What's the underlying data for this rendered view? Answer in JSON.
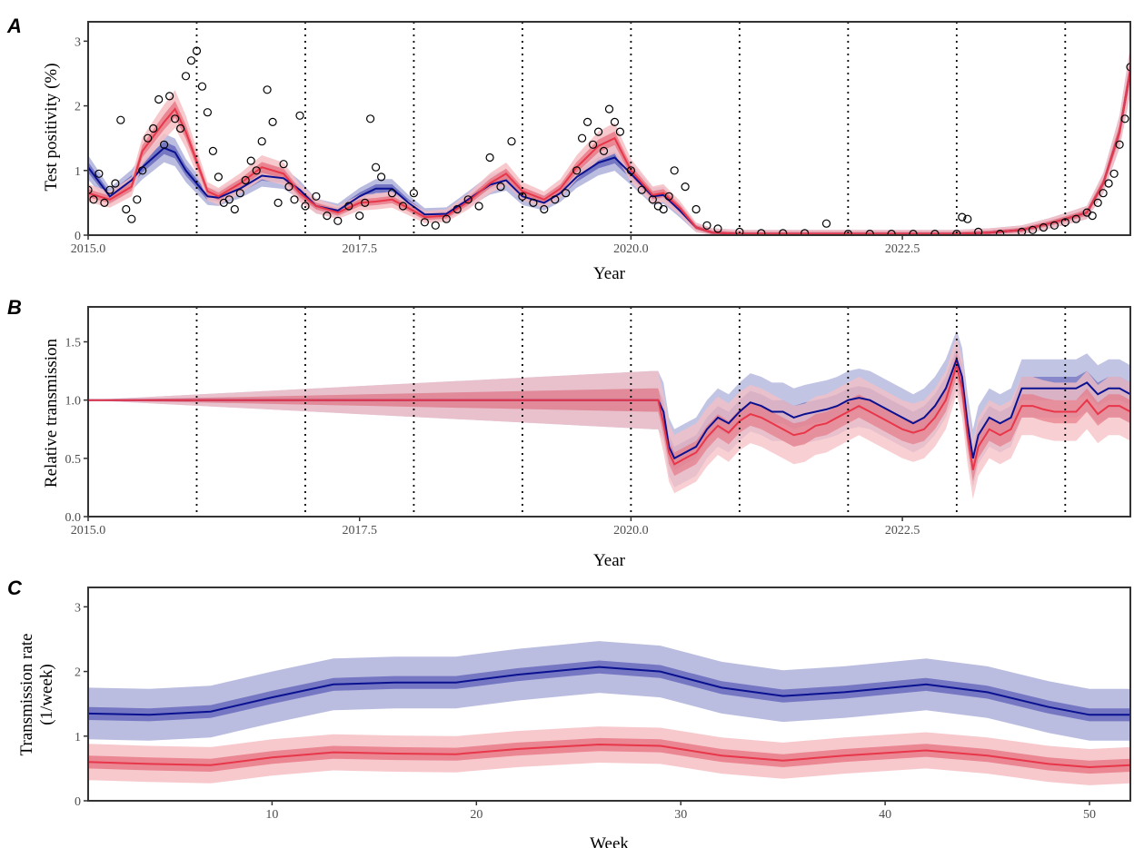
{
  "colors": {
    "blue_line": "#0a1190",
    "blue_band_outer": "#aeb0db",
    "blue_band_inner": "#5e60b8",
    "red_line": "#e8364a",
    "red_band_outer": "#f6c0c4",
    "red_band_inner": "#e6707d",
    "points": "#000000",
    "frame": "#333333"
  },
  "chart_data": [
    {
      "panel": "A",
      "type": "line",
      "xlabel": "Year",
      "ylabel": "Test positivity (%)",
      "xlim": [
        2015.0,
        2024.6
      ],
      "ylim": [
        0,
        3.3
      ],
      "xticks": [
        2015.0,
        2017.5,
        2020.0,
        2022.5
      ],
      "xtick_labels": [
        "2015.0",
        "2017.5",
        "2020.0",
        "2022.5"
      ],
      "yticks": [
        0,
        1,
        2,
        3
      ],
      "vlines": [
        2016,
        2017,
        2018,
        2019,
        2020,
        2021,
        2022,
        2023,
        2024
      ],
      "series": [
        {
          "color": "blue",
          "x": [
            2015.0,
            2015.2,
            2015.4,
            2015.5,
            2015.7,
            2015.8,
            2015.9,
            2016.1,
            2016.2,
            2016.4,
            2016.6,
            2016.8,
            2016.95,
            2017.1,
            2017.3,
            2017.5,
            2017.65,
            2017.8,
            2017.95,
            2018.1,
            2018.3,
            2018.5,
            2018.7,
            2018.85,
            2019.0,
            2019.2,
            2019.35,
            2019.5,
            2019.7,
            2019.85,
            2020.0,
            2020.2,
            2020.3,
            2020.45,
            2020.6,
            2020.75,
            2021.0,
            2021.5,
            2022.0,
            2022.5,
            2023.0,
            2023.3,
            2023.6,
            2023.85,
            2024.0,
            2024.2,
            2024.35,
            2024.5,
            2024.6
          ],
          "values": [
            1.05,
            0.6,
            0.85,
            1.05,
            1.35,
            1.28,
            1.0,
            0.6,
            0.58,
            0.72,
            0.92,
            0.88,
            0.7,
            0.45,
            0.38,
            0.6,
            0.72,
            0.72,
            0.5,
            0.32,
            0.33,
            0.55,
            0.78,
            0.85,
            0.6,
            0.5,
            0.65,
            0.9,
            1.12,
            1.2,
            0.95,
            0.6,
            0.62,
            0.38,
            0.12,
            0.04,
            0.02,
            0.02,
            0.02,
            0.02,
            0.02,
            0.04,
            0.08,
            0.18,
            0.25,
            0.35,
            0.8,
            1.6,
            2.55
          ]
        },
        {
          "color": "red",
          "x": [
            2015.0,
            2015.2,
            2015.4,
            2015.5,
            2015.7,
            2015.8,
            2015.9,
            2016.1,
            2016.2,
            2016.4,
            2016.6,
            2016.8,
            2016.95,
            2017.1,
            2017.3,
            2017.5,
            2017.65,
            2017.8,
            2017.95,
            2018.1,
            2018.3,
            2018.5,
            2018.7,
            2018.85,
            2019.0,
            2019.2,
            2019.35,
            2019.5,
            2019.7,
            2019.85,
            2020.0,
            2020.2,
            2020.3,
            2020.45,
            2020.6,
            2020.75,
            2021.0,
            2021.5,
            2022.0,
            2022.5,
            2023.0,
            2023.3,
            2023.6,
            2023.85,
            2024.0,
            2024.2,
            2024.35,
            2024.5,
            2024.6
          ],
          "values": [
            0.65,
            0.55,
            0.75,
            1.3,
            1.75,
            1.95,
            1.6,
            0.68,
            0.6,
            0.8,
            1.05,
            0.95,
            0.65,
            0.45,
            0.35,
            0.5,
            0.52,
            0.55,
            0.42,
            0.28,
            0.3,
            0.52,
            0.8,
            0.95,
            0.68,
            0.55,
            0.72,
            1.05,
            1.38,
            1.5,
            1.0,
            0.62,
            0.65,
            0.42,
            0.12,
            0.04,
            0.02,
            0.02,
            0.02,
            0.02,
            0.02,
            0.04,
            0.08,
            0.18,
            0.25,
            0.35,
            0.8,
            1.6,
            2.55
          ]
        }
      ],
      "observed": {
        "x": [
          2015.0,
          2015.05,
          2015.1,
          2015.15,
          2015.2,
          2015.25,
          2015.3,
          2015.35,
          2015.4,
          2015.45,
          2015.5,
          2015.55,
          2015.6,
          2015.65,
          2015.7,
          2015.75,
          2015.8,
          2015.85,
          2015.9,
          2015.95,
          2016.0,
          2016.05,
          2016.1,
          2016.15,
          2016.2,
          2016.25,
          2016.3,
          2016.35,
          2016.4,
          2016.45,
          2016.5,
          2016.55,
          2016.6,
          2016.65,
          2016.7,
          2016.75,
          2016.8,
          2016.85,
          2016.9,
          2016.95,
          2017.0,
          2017.1,
          2017.2,
          2017.3,
          2017.4,
          2017.5,
          2017.55,
          2017.6,
          2017.65,
          2017.7,
          2017.8,
          2017.9,
          2018.0,
          2018.1,
          2018.2,
          2018.3,
          2018.4,
          2018.5,
          2018.6,
          2018.7,
          2018.8,
          2018.9,
          2019.0,
          2019.1,
          2019.2,
          2019.3,
          2019.4,
          2019.5,
          2019.55,
          2019.6,
          2019.65,
          2019.7,
          2019.75,
          2019.8,
          2019.85,
          2019.9,
          2020.0,
          2020.1,
          2020.2,
          2020.25,
          2020.3,
          2020.35,
          2020.4,
          2020.5,
          2020.6,
          2020.7,
          2020.8,
          2021.0,
          2021.2,
          2021.4,
          2021.6,
          2021.8,
          2022.0,
          2022.2,
          2022.4,
          2022.6,
          2022.8,
          2023.0,
          2023.05,
          2023.1,
          2023.2,
          2023.4,
          2023.6,
          2023.7,
          2023.8,
          2023.9,
          2024.0,
          2024.1,
          2024.2,
          2024.25,
          2024.3,
          2024.35,
          2024.4,
          2024.45,
          2024.5,
          2024.55,
          2024.6
        ],
        "values": [
          0.7,
          0.55,
          0.95,
          0.5,
          0.7,
          0.8,
          1.78,
          0.4,
          0.25,
          0.55,
          1.0,
          1.5,
          1.65,
          2.1,
          1.4,
          2.15,
          1.8,
          1.65,
          2.46,
          2.7,
          2.85,
          2.3,
          1.9,
          1.3,
          0.9,
          0.5,
          0.55,
          0.4,
          0.65,
          0.85,
          1.15,
          1.0,
          1.45,
          2.25,
          1.75,
          0.5,
          1.1,
          0.75,
          0.55,
          1.85,
          0.45,
          0.6,
          0.3,
          0.22,
          0.45,
          0.3,
          0.5,
          1.8,
          1.05,
          0.9,
          0.65,
          0.45,
          0.65,
          0.2,
          0.15,
          0.25,
          0.4,
          0.55,
          0.45,
          1.2,
          0.75,
          1.45,
          0.6,
          0.5,
          0.4,
          0.55,
          0.65,
          1.0,
          1.5,
          1.75,
          1.4,
          1.6,
          1.3,
          1.95,
          1.75,
          1.6,
          1.0,
          0.7,
          0.55,
          0.45,
          0.4,
          0.6,
          1.0,
          0.75,
          0.4,
          0.15,
          0.1,
          0.05,
          0.03,
          0.03,
          0.03,
          0.18,
          0.02,
          0.02,
          0.02,
          0.02,
          0.02,
          0.02,
          0.28,
          0.25,
          0.05,
          0.02,
          0.05,
          0.08,
          0.12,
          0.15,
          0.2,
          0.25,
          0.35,
          0.3,
          0.5,
          0.65,
          0.8,
          0.95,
          1.4,
          1.8,
          2.6
        ]
      }
    },
    {
      "panel": "B",
      "type": "line",
      "xlabel": "Year",
      "ylabel": "Relative transmission",
      "xlim": [
        2015.0,
        2024.6
      ],
      "ylim": [
        0.0,
        1.8
      ],
      "xticks": [
        2015.0,
        2017.5,
        2020.0,
        2022.5
      ],
      "xtick_labels": [
        "2015.0",
        "2017.5",
        "2020.0",
        "2022.5"
      ],
      "yticks": [
        0.0,
        0.5,
        1.0,
        1.5
      ],
      "ytick_labels": [
        "0.0",
        "0.5",
        "1.0",
        "1.5"
      ],
      "vlines": [
        2016,
        2017,
        2018,
        2019,
        2020,
        2021,
        2022,
        2023,
        2024
      ],
      "series": [
        {
          "color": "blue",
          "x": [
            2015.0,
            2020.2,
            2020.25,
            2020.3,
            2020.35,
            2020.4,
            2020.5,
            2020.6,
            2020.7,
            2020.8,
            2020.9,
            2021.0,
            2021.1,
            2021.2,
            2021.3,
            2021.4,
            2021.5,
            2021.6,
            2021.7,
            2021.8,
            2021.9,
            2022.0,
            2022.1,
            2022.2,
            2022.3,
            2022.4,
            2022.5,
            2022.6,
            2022.7,
            2022.8,
            2022.9,
            2023.0,
            2023.05,
            2023.1,
            2023.15,
            2023.2,
            2023.3,
            2023.4,
            2023.5,
            2023.6,
            2023.7,
            2023.8,
            2023.9,
            2024.0,
            2024.1,
            2024.2,
            2024.3,
            2024.4,
            2024.5,
            2024.6
          ],
          "values": [
            1.0,
            1.0,
            1.0,
            0.9,
            0.6,
            0.5,
            0.55,
            0.6,
            0.75,
            0.85,
            0.8,
            0.9,
            0.98,
            0.95,
            0.9,
            0.9,
            0.85,
            0.88,
            0.9,
            0.92,
            0.95,
            1.0,
            1.02,
            1.0,
            0.95,
            0.9,
            0.85,
            0.8,
            0.85,
            0.95,
            1.1,
            1.35,
            1.2,
            0.8,
            0.5,
            0.7,
            0.85,
            0.8,
            0.85,
            1.1,
            1.1,
            1.1,
            1.1,
            1.1,
            1.1,
            1.15,
            1.05,
            1.1,
            1.1,
            1.05
          ]
        },
        {
          "color": "red",
          "x": [
            2015.0,
            2020.2,
            2020.25,
            2020.3,
            2020.35,
            2020.4,
            2020.5,
            2020.6,
            2020.7,
            2020.8,
            2020.9,
            2021.0,
            2021.1,
            2021.2,
            2021.3,
            2021.4,
            2021.5,
            2021.6,
            2021.7,
            2021.8,
            2021.9,
            2022.0,
            2022.1,
            2022.2,
            2022.3,
            2022.4,
            2022.5,
            2022.6,
            2022.7,
            2022.8,
            2022.9,
            2023.0,
            2023.05,
            2023.1,
            2023.15,
            2023.2,
            2023.3,
            2023.4,
            2023.5,
            2023.6,
            2023.7,
            2023.8,
            2023.9,
            2024.0,
            2024.1,
            2024.2,
            2024.3,
            2024.4,
            2024.5,
            2024.6
          ],
          "values": [
            1.0,
            1.0,
            1.0,
            0.8,
            0.55,
            0.45,
            0.5,
            0.55,
            0.68,
            0.78,
            0.72,
            0.82,
            0.88,
            0.85,
            0.8,
            0.75,
            0.7,
            0.72,
            0.78,
            0.8,
            0.85,
            0.9,
            0.95,
            0.9,
            0.85,
            0.8,
            0.75,
            0.72,
            0.75,
            0.85,
            1.0,
            1.3,
            1.1,
            0.7,
            0.4,
            0.6,
            0.75,
            0.7,
            0.75,
            0.95,
            0.95,
            0.92,
            0.9,
            0.9,
            0.9,
            1.0,
            0.88,
            0.95,
            0.95,
            0.9
          ]
        }
      ]
    },
    {
      "panel": "C",
      "type": "line",
      "xlabel": "Week",
      "ylabel": "Transmission rate (1/week)",
      "ylabel_lines": [
        "Transmission rate",
        "(1/week)"
      ],
      "xlim": [
        1,
        52
      ],
      "ylim": [
        0,
        3.3
      ],
      "xticks": [
        10,
        20,
        30,
        40,
        50
      ],
      "yticks": [
        0,
        1,
        2,
        3
      ],
      "series": [
        {
          "color": "blue",
          "x": [
            1,
            4,
            7,
            10,
            13,
            16,
            19,
            22,
            26,
            29,
            32,
            35,
            38,
            42,
            45,
            48,
            50,
            52
          ],
          "values": [
            1.35,
            1.33,
            1.38,
            1.6,
            1.8,
            1.83,
            1.83,
            1.95,
            2.07,
            2.0,
            1.75,
            1.62,
            1.68,
            1.8,
            1.68,
            1.45,
            1.33,
            1.33
          ],
          "inner_half_width": 0.1,
          "outer_half_width": 0.4
        },
        {
          "color": "red",
          "x": [
            1,
            4,
            7,
            10,
            13,
            16,
            19,
            22,
            26,
            29,
            32,
            35,
            38,
            42,
            45,
            48,
            50,
            52
          ],
          "values": [
            0.6,
            0.57,
            0.55,
            0.67,
            0.75,
            0.73,
            0.72,
            0.8,
            0.87,
            0.85,
            0.7,
            0.62,
            0.7,
            0.78,
            0.7,
            0.57,
            0.52,
            0.55
          ],
          "inner_half_width": 0.1,
          "outer_half_width": 0.28
        }
      ]
    }
  ]
}
